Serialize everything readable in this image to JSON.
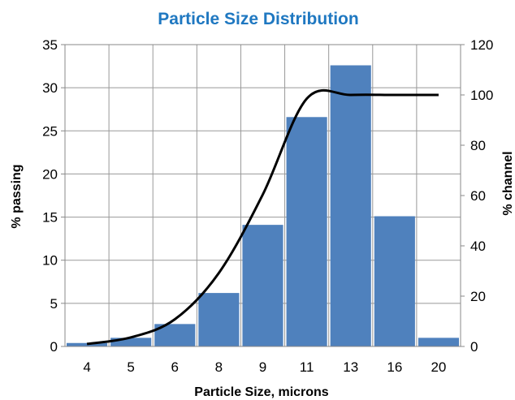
{
  "chart_data": {
    "type": "bar",
    "title": "Particle Size Distribution",
    "title_color": "#1F78C1",
    "xlabel": "Particle Size, microns",
    "ylabel": "% passing",
    "y2label": "% channel",
    "categories": [
      "4",
      "5",
      "6",
      "8",
      "9",
      "11",
      "13",
      "16",
      "20"
    ],
    "ylim": [
      0,
      35
    ],
    "y_ticks": [
      "0",
      "5",
      "10",
      "15",
      "20",
      "25",
      "30",
      "35"
    ],
    "y2lim": [
      0,
      120
    ],
    "y2_ticks": [
      "0",
      "20",
      "40",
      "60",
      "80",
      "100",
      "120"
    ],
    "grid": true,
    "bar_color": "#4F81BD",
    "line_color": "#000000",
    "series": [
      {
        "type": "bar",
        "axis": "left",
        "values": [
          0.4,
          1.0,
          2.6,
          6.2,
          14.1,
          26.6,
          32.6,
          15.1,
          1.0
        ]
      },
      {
        "type": "line",
        "axis": "right",
        "values": [
          1.0,
          3.6,
          10.8,
          29.2,
          60.4,
          98.5,
          100.0,
          100.0,
          100.0
        ]
      }
    ]
  }
}
